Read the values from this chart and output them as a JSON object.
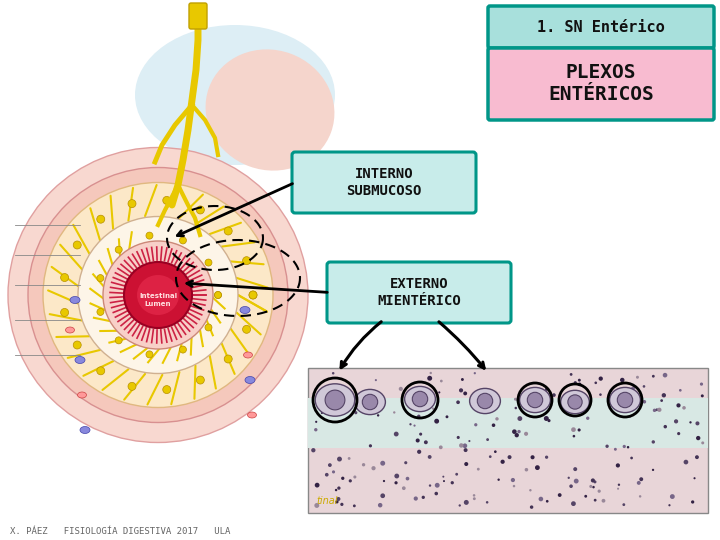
{
  "title1": "1. SN Entérico",
  "title2": "PLEXOS\nENTÉRICOS",
  "label1": "INTERNO\nSUBMUCOSO",
  "label2": "EXTERNO\nMIENTÉRICO",
  "footer": "X. PÁEZ   FISIOLOGÍA DIGESTIVA 2017   ULA",
  "bg_color": "#ffffff",
  "box1_bg": "#a8e0dc",
  "box1_edge": "#009688",
  "box2_bg": "#f8bbd0",
  "box2_edge": "#009688",
  "label_bg": "#c8ecea",
  "label_edge": "#009688",
  "arrow_color": "#000000",
  "title1_fontsize": 11,
  "title2_fontsize": 14,
  "label_fontsize": 10,
  "footer_fontsize": 6.5,
  "yellow_net": "#e8c800",
  "lumen_color": "#cc1133",
  "outer_pink": "#f5c8c0",
  "mid_pink": "#f8d8cc",
  "inner_cream": "#fae8d8"
}
